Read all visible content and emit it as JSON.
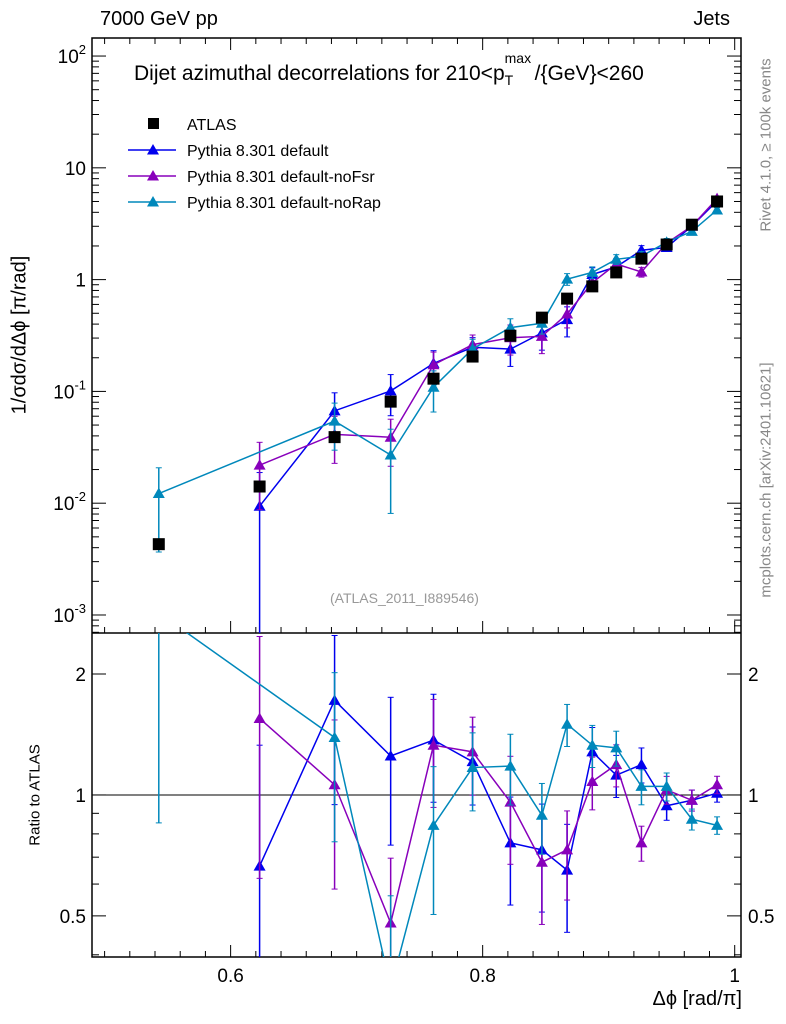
{
  "header": {
    "left": "7000 GeV pp",
    "right": "Jets"
  },
  "side": {
    "rivet": "Rivet 4.1.0, ≥ 100k events",
    "mcplots": "mcplots.cern.ch [arXiv:2401.10621]"
  },
  "chart_data": {
    "type": "line",
    "title": "Dijet azimuthal decorrelations for 210<p_T^max/{GeV}<260",
    "title_parts": {
      "pre": "Dijet azimuthal decorrelations for 210<p",
      "sub": "T",
      "sup": "max",
      "post": "/{GeV}<260"
    },
    "watermark": "(ATLAS_2011_I889546)",
    "xlabel": "Δϕ [rad/π]",
    "ylabel": "1/σdσ/dΔϕ [π/rad]",
    "ratio_ylabel": "Ratio to ATLAS",
    "xlim": [
      0.49,
      1.005
    ],
    "ylim": [
      0.00069,
      145
    ],
    "ratio_ylim": [
      0.395,
      2.53
    ],
    "yscale": "log",
    "legend": "top-left",
    "xticks": [
      "0.6",
      "0.8",
      "1"
    ],
    "xtick_values": [
      0.6,
      0.8,
      1.0
    ],
    "yticks": [
      {
        "b": "10",
        "e": "-3",
        "v": 0.001
      },
      {
        "b": "10",
        "e": "-2",
        "v": 0.01
      },
      {
        "b": "10",
        "e": "-1",
        "v": 0.1
      },
      {
        "b": "1",
        "e": "",
        "v": 1
      },
      {
        "b": "10",
        "e": "",
        "v": 10
      },
      {
        "b": "10",
        "e": "2",
        "v": 100
      }
    ],
    "ratio_yticks": [
      {
        "l": "2",
        "v": 2
      },
      {
        "l": "1",
        "v": 1
      },
      {
        "l": "0.5",
        "v": 0.5
      }
    ],
    "data": {
      "name": "ATLAS",
      "color": "#000000",
      "x": [
        0.543,
        0.623,
        0.6825,
        0.727,
        0.761,
        0.792,
        0.822,
        0.847,
        0.867,
        0.887,
        0.906,
        0.926,
        0.946,
        0.966,
        0.986
      ],
      "y": [
        0.0043,
        0.0141,
        0.039,
        0.081,
        0.13,
        0.205,
        0.315,
        0.457,
        0.676,
        0.87,
        1.16,
        1.54,
        2.06,
        3.1,
        5.0
      ]
    },
    "series": [
      {
        "name": "Pythia 8.301 default",
        "color": "#0000ee",
        "x": [
          0.623,
          0.6825,
          0.727,
          0.761,
          0.792,
          0.822,
          0.847,
          0.867,
          0.887,
          0.906,
          0.926,
          0.946,
          0.966,
          0.986
        ],
        "y": [
          0.0094,
          0.067,
          0.101,
          0.178,
          0.248,
          0.239,
          0.334,
          0.439,
          1.11,
          1.3,
          1.83,
          1.94,
          3.01,
          5.05
        ],
        "ratio": [
          0.665,
          1.72,
          1.25,
          1.37,
          1.21,
          0.76,
          0.73,
          0.65,
          1.28,
          1.12,
          1.19,
          0.94,
          0.97,
          1.01
        ],
        "rel_err": [
          1.0,
          0.45,
          0.4,
          0.3,
          0.22,
          0.3,
          0.3,
          0.3,
          0.15,
          0.12,
          0.1,
          0.08,
          0.06,
          0.05
        ]
      },
      {
        "name": "Pythia 8.301 default-noFsr",
        "color": "#8800bb",
        "x": [
          0.623,
          0.6825,
          0.727,
          0.761,
          0.792,
          0.822,
          0.847,
          0.867,
          0.887,
          0.906,
          0.926,
          0.946,
          0.966,
          0.986
        ],
        "y": [
          0.0219,
          0.0413,
          0.0389,
          0.173,
          0.262,
          0.302,
          0.311,
          0.493,
          0.94,
          1.38,
          1.17,
          2.12,
          3.01,
          5.3
        ],
        "ratio": [
          1.55,
          1.06,
          0.48,
          1.33,
          1.28,
          0.96,
          0.68,
          0.73,
          1.08,
          1.19,
          0.76,
          1.03,
          0.97,
          1.06
        ],
        "rel_err": [
          0.6,
          0.45,
          0.45,
          0.3,
          0.22,
          0.3,
          0.3,
          0.25,
          0.15,
          0.12,
          0.1,
          0.08,
          0.06,
          0.05
        ]
      },
      {
        "name": "Pythia 8.301 default-noRap",
        "color": "#0088bb",
        "x": [
          0.543,
          0.6825,
          0.727,
          0.761,
          0.792,
          0.822,
          0.847,
          0.867,
          0.887,
          0.906,
          0.926,
          0.946,
          0.966,
          0.986
        ],
        "y": [
          0.0122,
          0.0542,
          0.027,
          0.109,
          0.24,
          0.372,
          0.407,
          1.01,
          1.16,
          1.52,
          1.62,
          2.16,
          2.7,
          4.2
        ],
        "ratio": [
          2.84,
          1.39,
          0.33,
          0.84,
          1.17,
          1.18,
          0.89,
          1.5,
          1.33,
          1.31,
          1.05,
          1.05,
          0.87,
          0.84
        ],
        "rel_err": [
          0.7,
          0.45,
          0.7,
          0.4,
          0.22,
          0.2,
          0.2,
          0.12,
          0.12,
          0.1,
          0.1,
          0.08,
          0.06,
          0.05
        ]
      }
    ]
  }
}
